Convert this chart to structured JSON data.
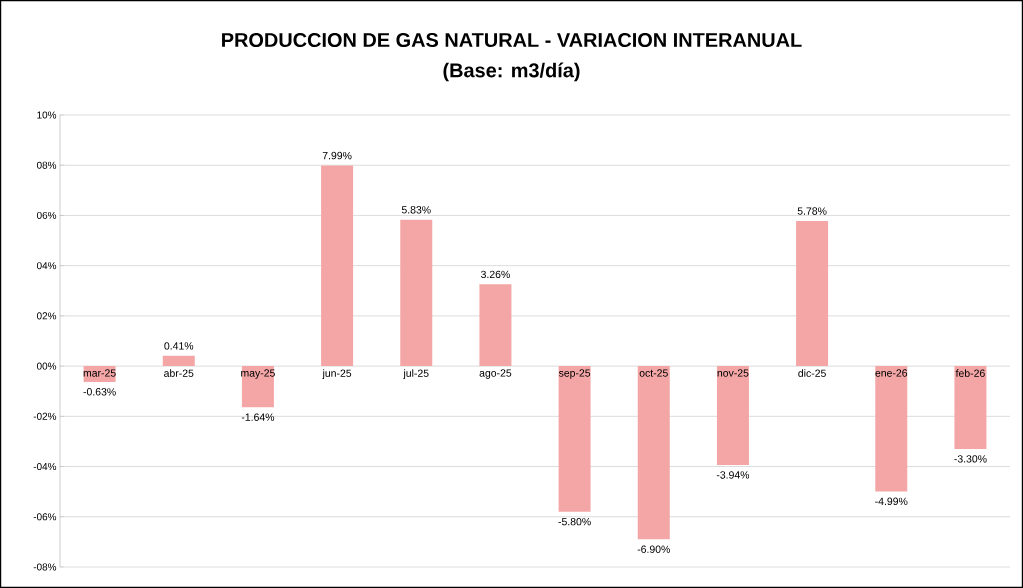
{
  "chart_data": {
    "type": "bar",
    "title": "PRODUCCION DE GAS NATURAL - VARIACION INTERANUAL",
    "subtitle": "(Base: m3/día)",
    "categories": [
      "mar-25",
      "abr-25",
      "may-25",
      "jun-25",
      "jul-25",
      "ago-25",
      "sep-25",
      "oct-25",
      "nov-25",
      "dic-25",
      "ene-26",
      "feb-26"
    ],
    "values": [
      -0.63,
      0.41,
      -1.64,
      7.99,
      5.83,
      3.26,
      -5.8,
      -6.9,
      -3.94,
      5.78,
      -4.99,
      -3.3
    ],
    "value_labels": [
      "-0.63%",
      "0.41%",
      "-1.64%",
      "7.99%",
      "5.83%",
      "3.26%",
      "-5.80%",
      "-6.90%",
      "-3.94%",
      "5.78%",
      "-4.99%",
      "-3.30%"
    ],
    "color": "#f4a6a6",
    "ylim": [
      -8,
      10
    ],
    "yticks": [
      {
        "value": -8,
        "label": "-08%"
      },
      {
        "value": -6,
        "label": "-06%"
      },
      {
        "value": -4,
        "label": "-04%"
      },
      {
        "value": -2,
        "label": "-02%"
      },
      {
        "value": 0,
        "label": "00%"
      },
      {
        "value": 2,
        "label": "02%"
      },
      {
        "value": 4,
        "label": "04%"
      },
      {
        "value": 6,
        "label": "06%"
      },
      {
        "value": 8,
        "label": "08%"
      },
      {
        "value": 10,
        "label": "10%"
      }
    ],
    "grid": "y"
  }
}
